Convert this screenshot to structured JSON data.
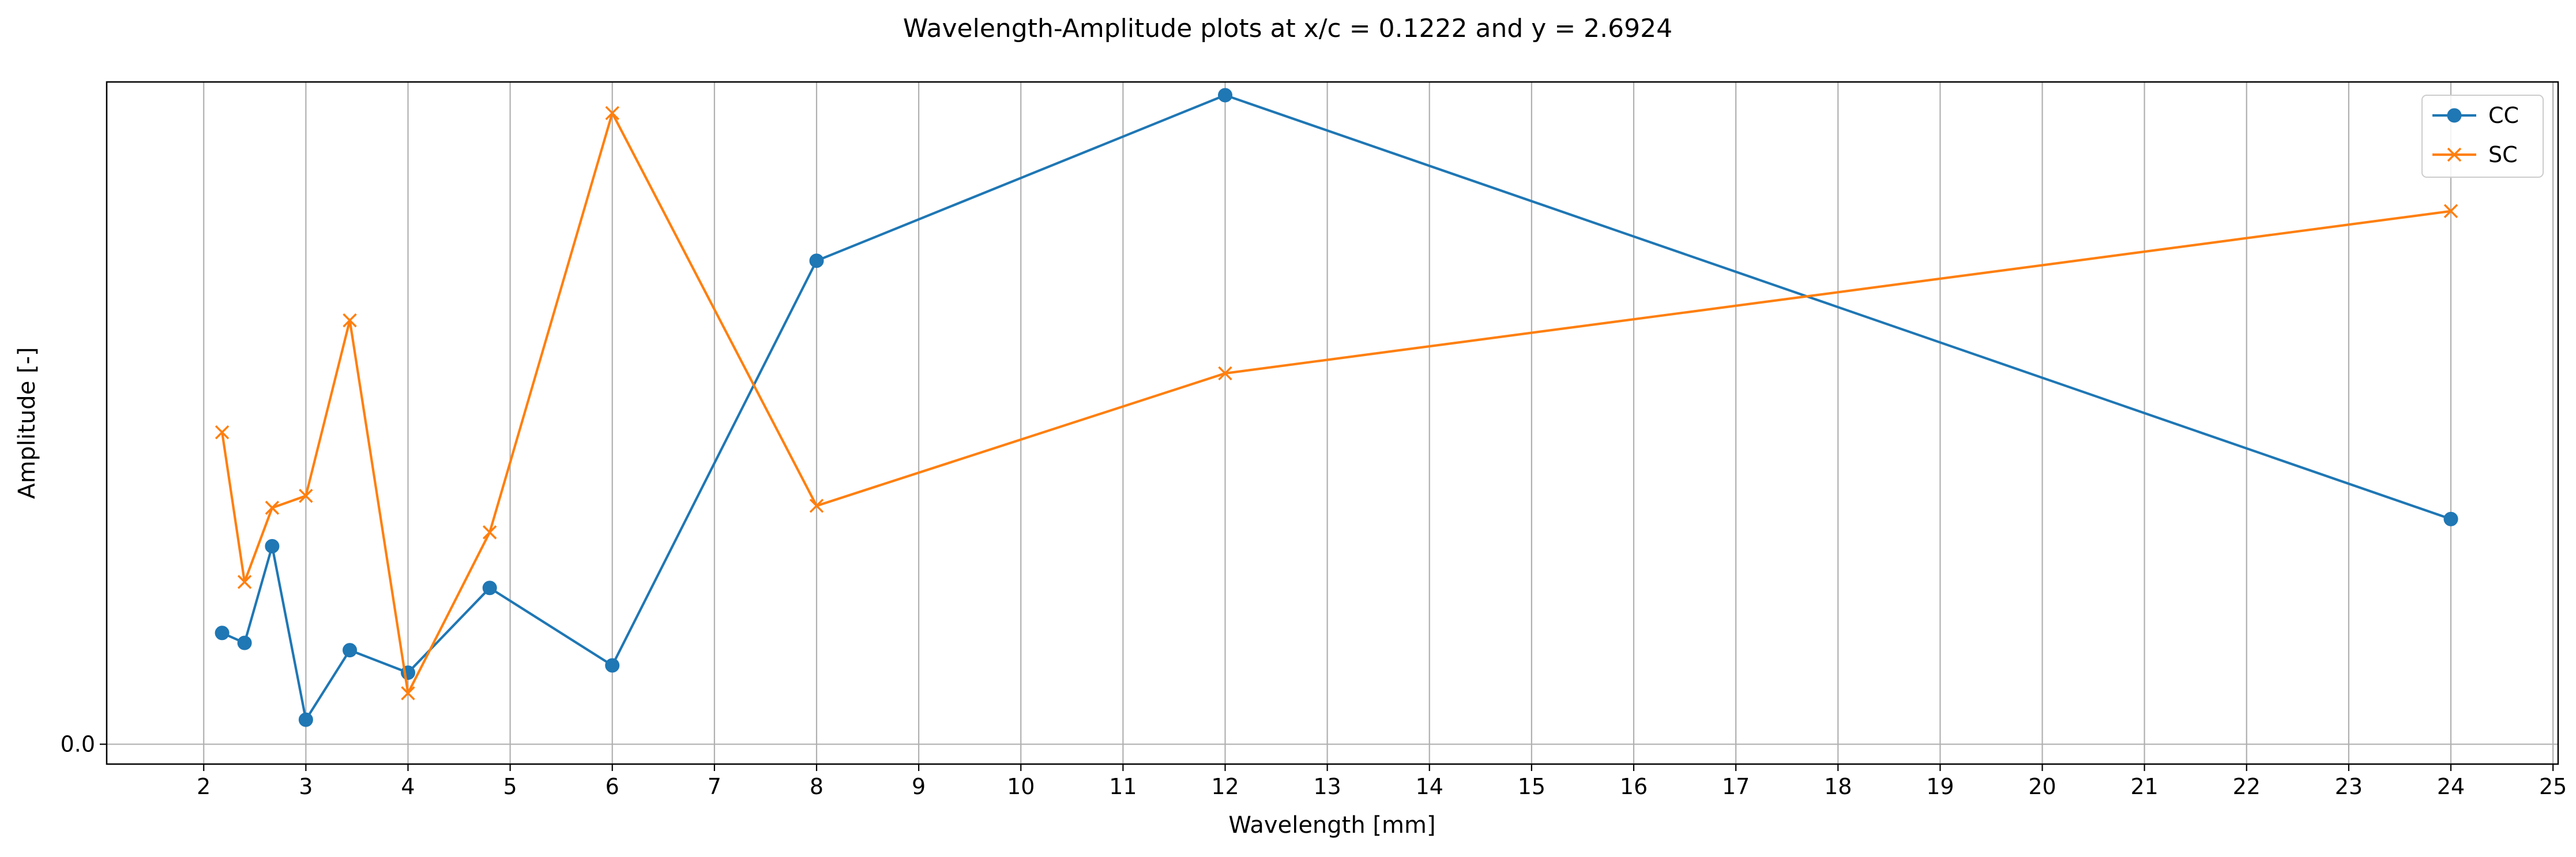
{
  "chart_data": {
    "type": "line",
    "title": "Wavelength-Amplitude plots at x/c = 0.1222 and y = 2.6924",
    "xlabel": "Wavelength [mm]",
    "ylabel": "Amplitude [-]",
    "xlim": [
      1.05,
      25.05
    ],
    "ylim": [
      -0.03,
      1.0
    ],
    "x_ticks": [
      2,
      3,
      4,
      5,
      6,
      7,
      8,
      9,
      10,
      11,
      12,
      13,
      14,
      15,
      16,
      17,
      18,
      19,
      20,
      21,
      22,
      23,
      24,
      25
    ],
    "y_ticks": [
      0.0
    ],
    "y_tick_labels": [
      "0.0"
    ],
    "grid": "vertical",
    "legend_position": "top-right",
    "series": [
      {
        "name": "CC",
        "color": "#1f77b4",
        "marker": "circle",
        "x": [
          2.18,
          2.4,
          2.67,
          3.0,
          3.43,
          4.0,
          4.8,
          6.0,
          8.0,
          12.0,
          24.0
        ],
        "y": [
          0.168,
          0.153,
          0.299,
          0.037,
          0.142,
          0.108,
          0.236,
          0.119,
          0.73,
          0.98,
          0.34
        ]
      },
      {
        "name": "SC",
        "color": "#ff7f0e",
        "marker": "x",
        "x": [
          2.18,
          2.4,
          2.67,
          3.0,
          3.43,
          4.0,
          4.8,
          6.0,
          8.0,
          12.0,
          24.0
        ],
        "y": [
          0.471,
          0.245,
          0.357,
          0.375,
          0.64,
          0.077,
          0.32,
          0.953,
          0.36,
          0.56,
          0.805
        ]
      }
    ]
  }
}
